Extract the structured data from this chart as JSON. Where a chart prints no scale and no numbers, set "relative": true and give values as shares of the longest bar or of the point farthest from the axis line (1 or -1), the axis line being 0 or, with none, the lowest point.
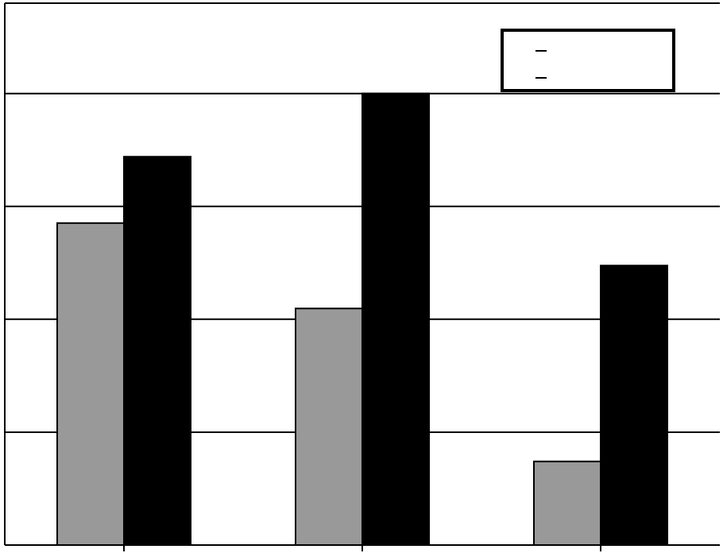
{
  "chart_data": {
    "type": "bar",
    "relative": true,
    "categories": [
      null,
      null,
      null
    ],
    "grid": "y",
    "series": [
      {
        "color": "#999999",
        "values": [
          0.713,
          0.524,
          0.185
        ]
      },
      {
        "color": "#000000",
        "values": [
          0.86,
          1,
          0.619
        ]
      }
    ]
  }
}
